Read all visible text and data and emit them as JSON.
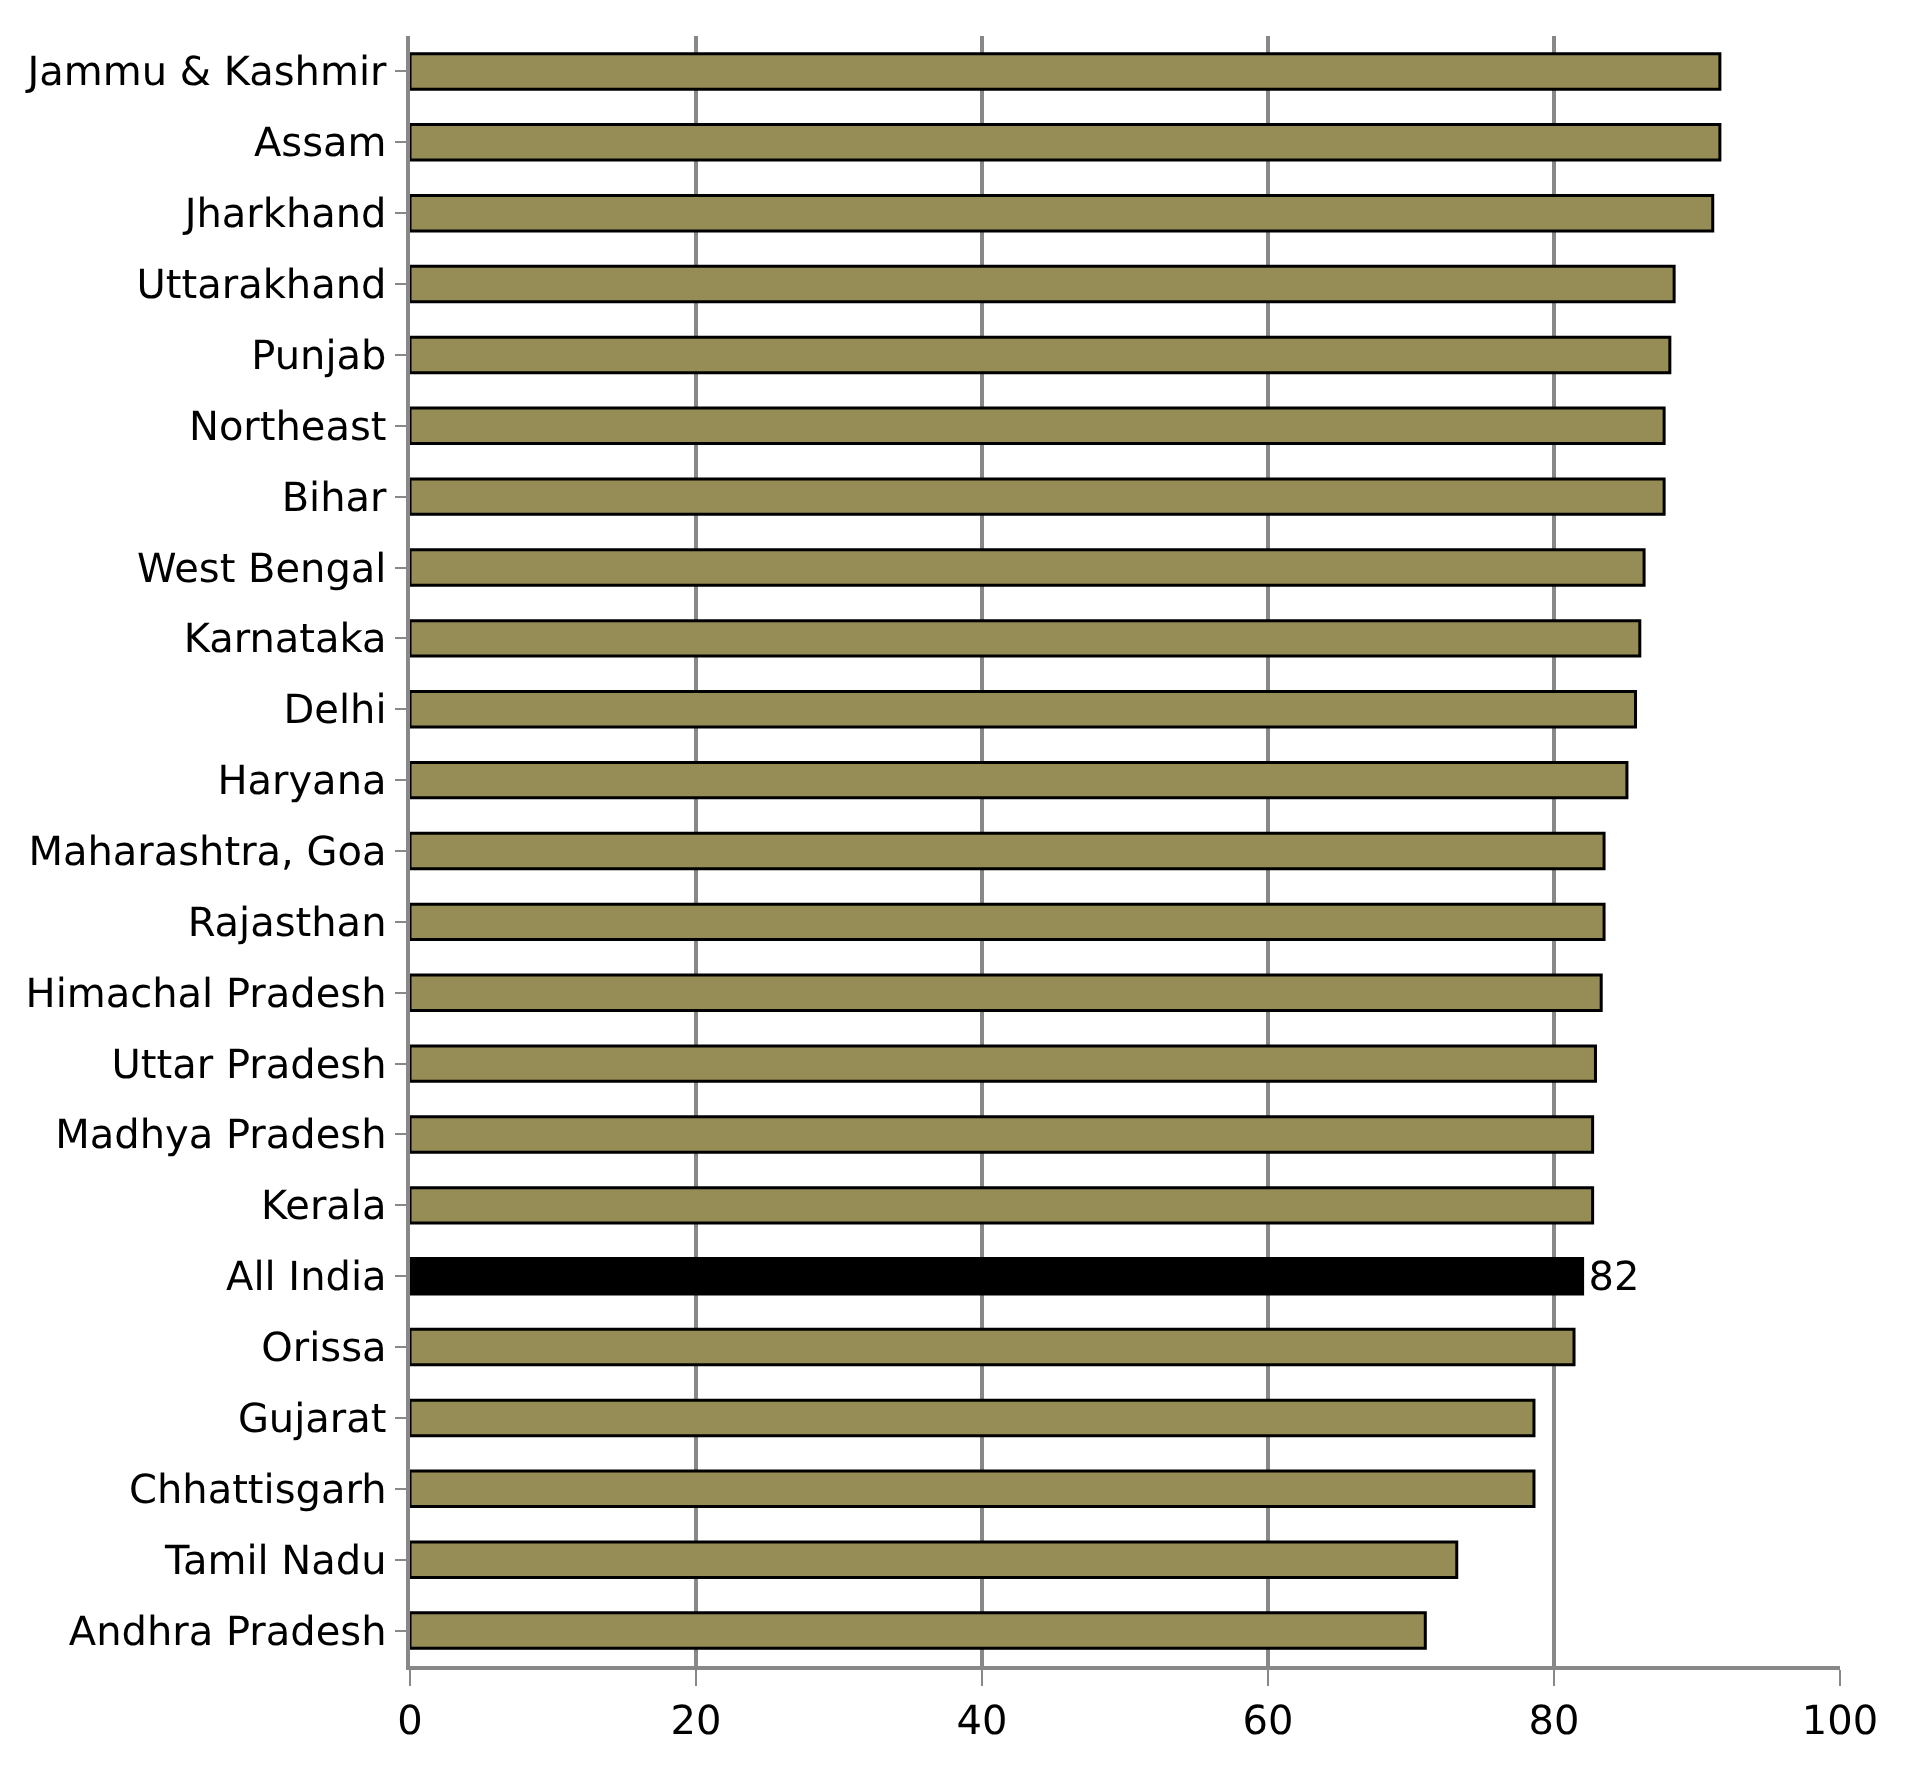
{
  "chart_data": {
    "type": "bar",
    "orientation": "horizontal",
    "categories": [
      "Jammu & Kashmir",
      "Assam",
      "Jharkhand",
      "Uttarakhand",
      "Punjab",
      "Northeast",
      "Bihar",
      "West Bengal",
      "Karnataka",
      "Delhi",
      "Haryana",
      "Maharashtra, Goa",
      "Rajasthan",
      "Himachal Pradesh",
      "Uttar Pradesh",
      "Madhya Pradesh",
      "Kerala",
      "All India",
      "Orissa",
      "Gujarat",
      "Chhattisgarh",
      "Tamil Nadu",
      "Andhra Pradesh"
    ],
    "values": [
      91.6,
      91.6,
      91.1,
      88.4,
      88.1,
      87.7,
      87.7,
      86.3,
      86.0,
      85.7,
      85.1,
      83.5,
      83.5,
      83.3,
      82.9,
      82.7,
      82.7,
      82,
      81.4,
      78.6,
      78.6,
      73.2,
      71.0
    ],
    "value_labels": [
      null,
      null,
      null,
      null,
      null,
      null,
      null,
      null,
      null,
      null,
      null,
      null,
      null,
      null,
      null,
      null,
      null,
      "82",
      null,
      null,
      null,
      null,
      null
    ],
    "colors": [
      "#968c55",
      "#968c55",
      "#968c55",
      "#968c55",
      "#968c55",
      "#968c55",
      "#968c55",
      "#968c55",
      "#968c55",
      "#968c55",
      "#968c55",
      "#968c55",
      "#968c55",
      "#968c55",
      "#968c55",
      "#968c55",
      "#968c55",
      "#000000",
      "#968c55",
      "#968c55",
      "#968c55",
      "#968c55",
      "#968c55"
    ],
    "xlim": [
      0,
      100
    ],
    "xticks": [
      0,
      20,
      40,
      60,
      80,
      100
    ],
    "grid": "x"
  }
}
